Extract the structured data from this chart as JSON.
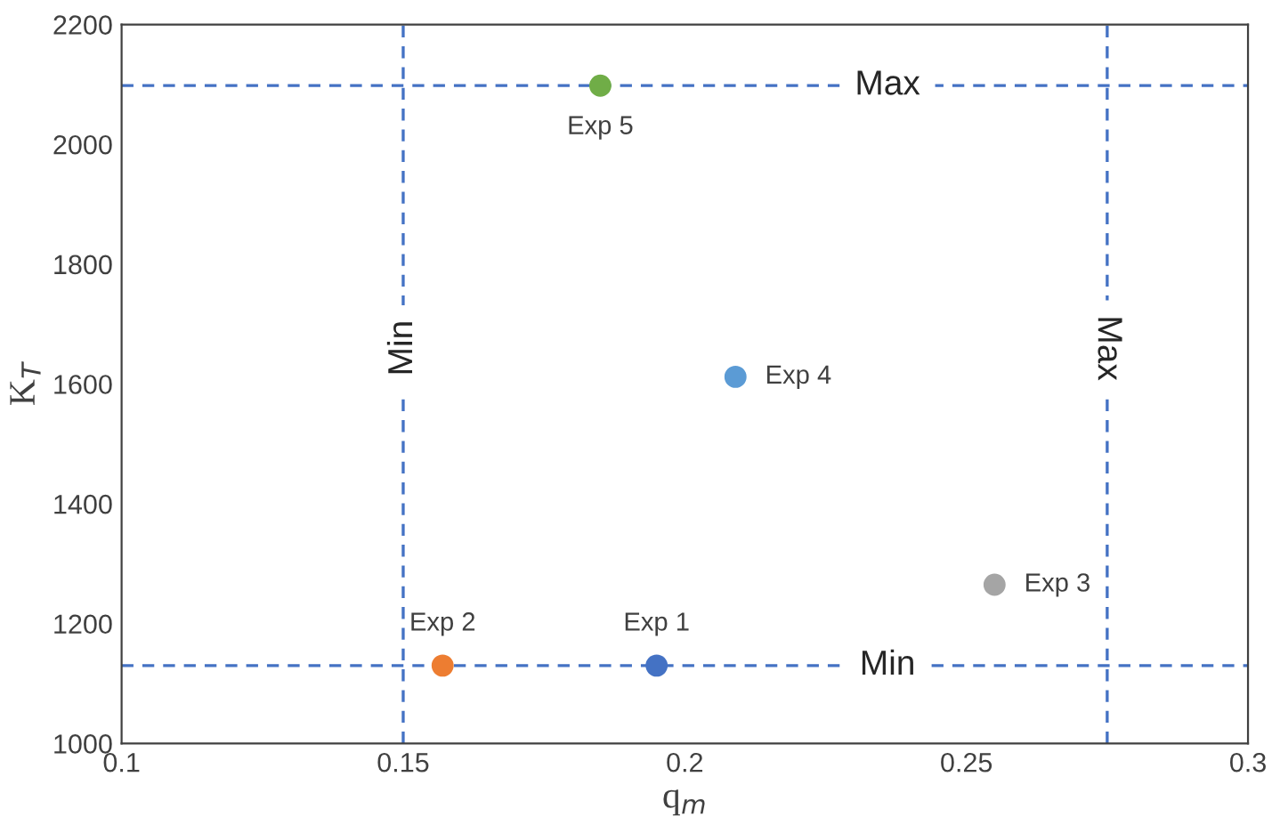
{
  "chart_data": {
    "type": "scatter",
    "xlabel": "q$_{m}$",
    "ylabel": "K$_{T}$",
    "xlim": [
      0.1,
      0.3
    ],
    "xticks": [
      0.1,
      0.15,
      0.2,
      0.25,
      0.3
    ],
    "ylim": [
      1000,
      2200
    ],
    "yticks": [
      1000,
      1200,
      1400,
      1600,
      1800,
      2000,
      2200
    ],
    "grid": false,
    "legend": false,
    "marker": "circle",
    "series": [
      {
        "name": "Exp 1",
        "color": "#4472c4",
        "x": [
          0.195
        ],
        "values": [
          1130
        ]
      },
      {
        "name": "Exp 2",
        "color": "#ed7d31",
        "x": [
          0.157
        ],
        "values": [
          1130
        ]
      },
      {
        "name": "Exp 3",
        "color": "#a5a5a5",
        "x": [
          0.255
        ],
        "values": [
          1265
        ]
      },
      {
        "name": "Exp 4",
        "color": "#5b9bd5",
        "x": [
          0.209
        ],
        "values": [
          1612
        ]
      },
      {
        "name": "Exp 5",
        "color": "#70ad47",
        "x": [
          0.185
        ],
        "values": [
          2098
        ]
      }
    ],
    "ref_lines": [
      {
        "axis": "x",
        "value": 0.15,
        "label": "Min",
        "color": "#4472c4",
        "line_style": "dashed"
      },
      {
        "axis": "x",
        "value": 0.275,
        "label": "Max",
        "color": "#4472c4",
        "line_style": "dashed"
      },
      {
        "axis": "y",
        "value": 1130,
        "label": "Min",
        "color": "#4472c4",
        "line_style": "dashed"
      },
      {
        "axis": "y",
        "value": 2098,
        "label": "Max",
        "color": "#4472c4",
        "line_style": "dashed"
      }
    ]
  }
}
